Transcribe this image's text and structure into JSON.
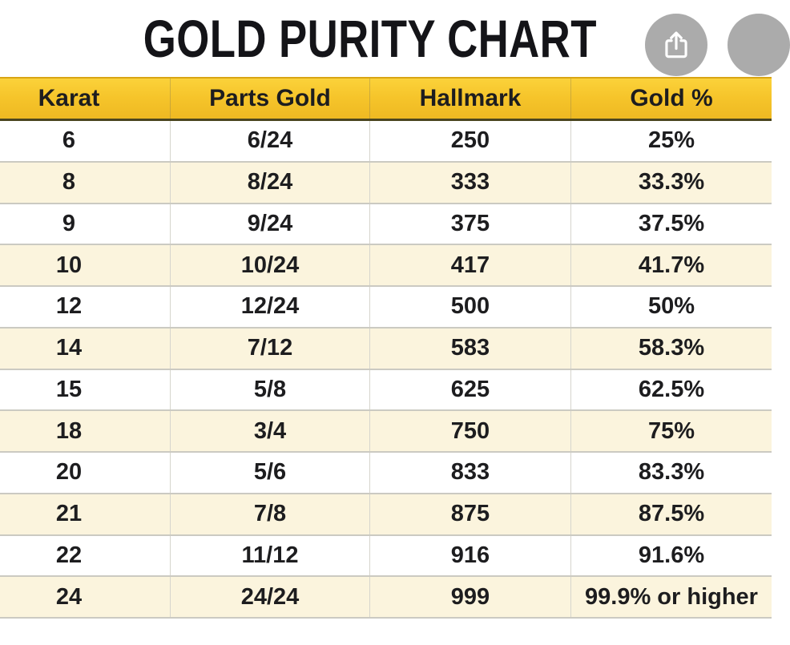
{
  "page": {
    "title": "GOLD PURITY CHART"
  },
  "toolbar": {
    "share_icon": "ios-share-up-arrow",
    "partial_right_button": "circular-button-clipped-at-edge"
  },
  "colors": {
    "header_yellow": "#f6c52b",
    "header_yellow_light": "#fbd23a",
    "header_yellow_dark": "#eeb922",
    "header_top_border": "#d9a513",
    "header_bottom_border": "#4a451f",
    "row_cream": "#fbf4dd",
    "row_white": "#ffffff",
    "row_divider": "#cbcac2",
    "column_divider": "#d6d5cd",
    "text": "#1d1d1f",
    "button_gray": "#ababab"
  },
  "chart_data": {
    "type": "table",
    "title": "GOLD PURITY CHART",
    "columns": [
      "Karat",
      "Parts Gold",
      "Hallmark",
      "Gold %"
    ],
    "rows": [
      [
        "6",
        "6/24",
        "250",
        "25%"
      ],
      [
        "8",
        "8/24",
        "333",
        "33.3%"
      ],
      [
        "9",
        "9/24",
        "375",
        "37.5%"
      ],
      [
        "10",
        "10/24",
        "417",
        "41.7%"
      ],
      [
        "12",
        "12/24",
        "500",
        "50%"
      ],
      [
        "14",
        "7/12",
        "583",
        "58.3%"
      ],
      [
        "15",
        "5/8",
        "625",
        "62.5%"
      ],
      [
        "18",
        "3/4",
        "750",
        "75%"
      ],
      [
        "20",
        "5/6",
        "833",
        "83.3%"
      ],
      [
        "21",
        "7/8",
        "875",
        "87.5%"
      ],
      [
        "22",
        "11/12",
        "916",
        "91.6%"
      ],
      [
        "24",
        "24/24",
        "999",
        "99.9% or higher"
      ]
    ],
    "layout": {
      "striped_rows": true,
      "stripe_pattern": "white/cream alternating starting white",
      "right_edge_clipped": true
    }
  }
}
